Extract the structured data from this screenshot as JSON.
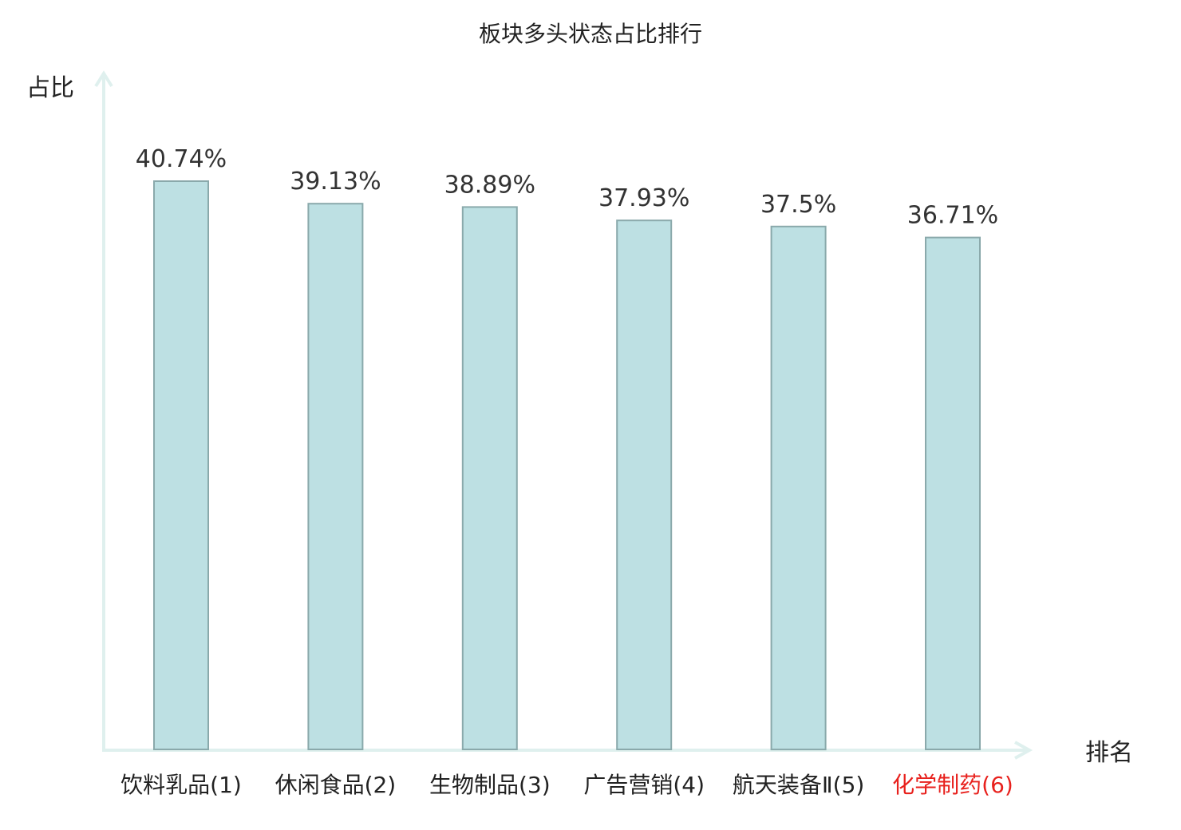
{
  "chart_data": {
    "type": "bar",
    "title": "板块多头状态占比排行",
    "ylabel": "占比",
    "xlabel": "排名",
    "categories": [
      "饮料乳品(1)",
      "休闲食品(2)",
      "生物制品(3)",
      "广告营销(4)",
      "航天装备Ⅱ(5)",
      "化学制药(6)"
    ],
    "values": [
      40.74,
      39.13,
      38.89,
      37.93,
      37.5,
      36.71
    ],
    "value_labels": [
      "40.74%",
      "39.13%",
      "38.89%",
      "37.93%",
      "37.5%",
      "36.71%"
    ],
    "ylim": [
      0,
      48
    ],
    "grid": false,
    "highlighted_category": "化学制药(6)",
    "colors": {
      "bar_fill": "#bde0e3",
      "bar_stroke": "#8aa9ab",
      "axis": "#dff0ee",
      "highlight_label": "#e8211d",
      "text": "#222222"
    }
  }
}
